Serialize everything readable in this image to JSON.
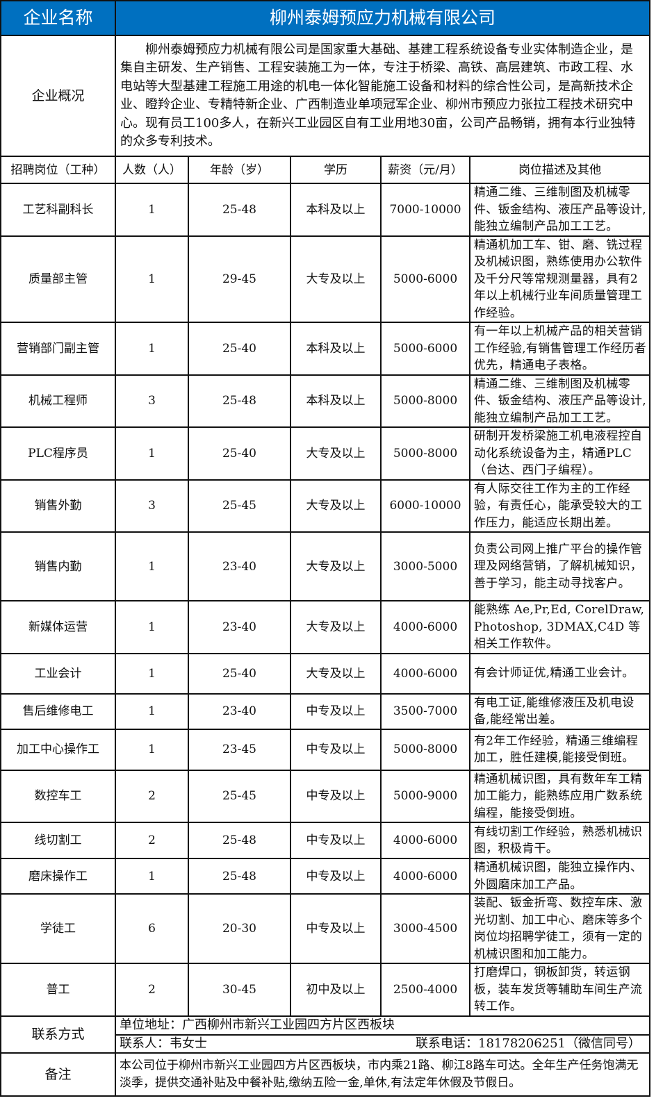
{
  "header": {
    "label": "企业名称",
    "company": "柳州泰姆预应力机械有限公司",
    "color": "#0070c0"
  },
  "overview": {
    "label": "企业概况",
    "text": "柳州泰姆预应力机械有限公司是国家重大基础、基建工程系统设备专业实体制造企业，是集自主研发、生产销售、工程安装施工为一体，专注于桥梁、高铁、高层建筑、市政工程、水电站等大型基建工程施工用途的机电一体化智能施工设备和材料的综合性公司，是高新技术企业、瞪羚企业、专精特新企业、广西制造业单项冠军企业、柳州市预应力张拉工程技术研究中心。现有员工100多人，在新兴工业园区自有工业用地30亩，公司产品畅销，拥有本行业独特的众多专利技术。"
  },
  "columns": [
    "招聘岗位（工种）",
    "人数（人）",
    "年龄（岁）",
    "学历",
    "薪资（元/月）",
    "岗位描述及其他"
  ],
  "rows": [
    {
      "title": "工艺科副科长",
      "count": "1",
      "age": "25-48",
      "edu": "本科及以上",
      "salary": "7000-10000",
      "desc": "精通二维、三维制图及机械零件、钣金结构、液压产品等设计,能独立编制产品加工工艺。"
    },
    {
      "title": "质量部主管",
      "count": "1",
      "age": "29-45",
      "edu": "大专及以上",
      "salary": "5000-6000",
      "desc": "精通机加工车、钳、磨、铣过程及机械识图，熟练使用办公软件及千分尺等常规测量器，具有2年以上机械行业车间质量管理工作经验。"
    },
    {
      "title": "营销部门副主管",
      "count": "1",
      "age": "25-40",
      "edu": "本科及以上",
      "salary": "5000-6000",
      "desc": "有一年以上机械产品的相关营销工作经验,有销售管理工作经历者优先，精通电子表格。"
    },
    {
      "title": "机械工程师",
      "count": "3",
      "age": "25-48",
      "edu": "本科及以上",
      "salary": "5000-8000",
      "desc": "精通二维、三维制图及机械零件、钣金结构、液压产品等设计,能独立编制产品加工工艺。"
    },
    {
      "title": "PLC程序员",
      "count": "1",
      "age": "25-40",
      "edu": "大专及以上",
      "salary": "5000-8000",
      "desc": "研制开发桥梁施工机电液程控自动化系统设备为主，精通PLC（台达、西门子编程）。"
    },
    {
      "title": "销售外勤",
      "count": "3",
      "age": "25-45",
      "edu": "大专及以上",
      "salary": "6000-10000",
      "desc": "有人际交往工作为主的工作经验，有责任心，能承受较大的工作压力，能适应长期出差。"
    },
    {
      "title": "销售内勤",
      "count": "1",
      "age": "23-40",
      "edu": "大专及以上",
      "salary": "3000-5000",
      "desc": "负责公司网上推广平台的操作管理及网络营销，了解机械知识，善于学习，能主动寻找客户。"
    },
    {
      "title": "新媒体运营",
      "count": "1",
      "age": "23-40",
      "edu": "大专及以上",
      "salary": "4000-6000",
      "desc": "能熟练 Ae,Pr,Ed, CorelDraw, Photoshop, 3DMAX,C4D 等相关工作软件。"
    },
    {
      "title": "工业会计",
      "count": "1",
      "age": "25-40",
      "edu": "大专及以上",
      "salary": "4000-6000",
      "desc": "有会计师证优,精通工业会计。"
    },
    {
      "title": "售后维修电工",
      "count": "1",
      "age": "23-40",
      "edu": "中专及以上",
      "salary": "3500-7000",
      "desc": "有电工证,能维修液压及机电设备,能经常出差。"
    },
    {
      "title": "加工中心操作工",
      "count": "1",
      "age": "23-45",
      "edu": "中专及以上",
      "salary": "5000-8000",
      "desc": "有2年工作经验，精通三维编程加工，胜任建模,能接受倒班。"
    },
    {
      "title": "数控车工",
      "count": "2",
      "age": "25-45",
      "edu": "中专及以上",
      "salary": "5000-9000",
      "desc": "精通机械识图，具有数年车工精加工能力，能熟练应用广数系统编程，能接受倒班。"
    },
    {
      "title": "线切割工",
      "count": "2",
      "age": "25-48",
      "edu": "中专及以上",
      "salary": "4000-6000",
      "desc": "有线切割工作经验，熟悉机械识图，积极肯干。"
    },
    {
      "title": "磨床操作工",
      "count": "1",
      "age": "25-48",
      "edu": "中专及以上",
      "salary": "4000-6000",
      "desc": "精通机械识图，能独立操作内、外圆磨床加工产品。"
    },
    {
      "title": "学徒工",
      "count": "6",
      "age": "20-30",
      "edu": "中专及以上",
      "salary": "3000-4500",
      "desc": "装配、钣金折弯、数控车床、激光切割、加工中心、磨床等多个岗位均招聘学徒工，须有一定的机械识图和加工能力。"
    },
    {
      "title": "普工",
      "count": "2",
      "age": "30-45",
      "edu": "初中及以上",
      "salary": "2500-4000",
      "desc": "打磨焊口，钢板卸货，转运钢板，装车发货等辅助车间生产流转工作。"
    }
  ],
  "contact": {
    "label": "联系方式",
    "address": "单位地址：广西柳州市新兴工业园四方片区西板块",
    "person": "联系人：韦女士",
    "phone": "联系电话：18178206251（微信同号）"
  },
  "remarks": {
    "label": "备注",
    "text": "本公司位于柳州市新兴工业园四方片区西板块，市内乘21路、柳江8路车可达。全年生产任务饱满无淡季，提供交通补贴及中餐补贴,缴纳五险一金,单休,有法定年休假及节假日。"
  }
}
